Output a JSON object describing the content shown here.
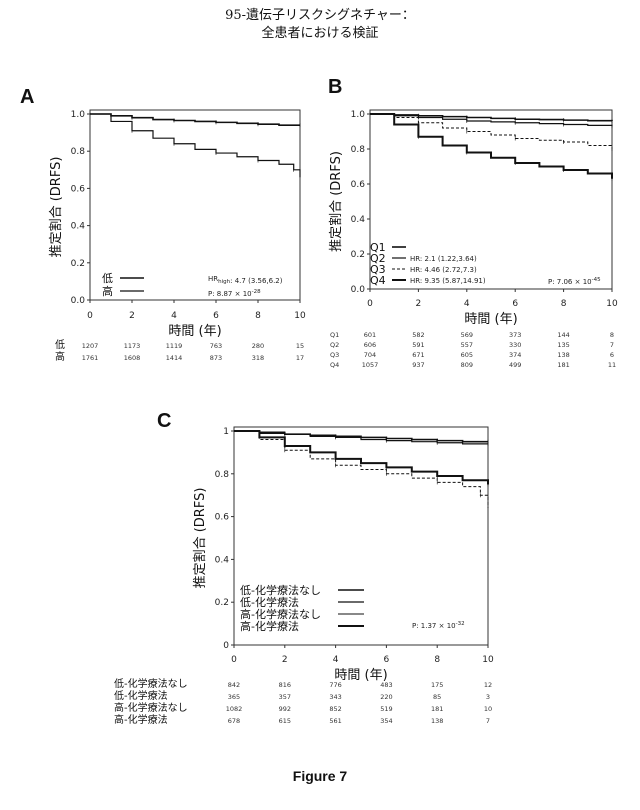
{
  "page": {
    "title_line1": "95-遺伝子リスクシグネチャー：",
    "title_line2": "全患者における検証",
    "figure_label": "Figure 7"
  },
  "chart_data": [
    {
      "id": "A",
      "type": "line",
      "panel_label": "A",
      "xlabel": "時間 (年)",
      "ylabel": "推定割合 (DRFS)",
      "xlim": [
        0,
        10
      ],
      "ylim": [
        0,
        1
      ],
      "x_ticks": [
        "0",
        "2",
        "4",
        "6",
        "8",
        "10"
      ],
      "y_ticks": [
        "0.0",
        "0.2",
        "0.4",
        "0.6",
        "0.8",
        "1.0"
      ],
      "series": [
        {
          "name": "低",
          "x": [
            0,
            1,
            2,
            3,
            4,
            5,
            6,
            7,
            8,
            9,
            10
          ],
          "y": [
            1.0,
            0.99,
            0.98,
            0.97,
            0.965,
            0.96,
            0.955,
            0.95,
            0.945,
            0.94,
            0.94
          ]
        },
        {
          "name": "高",
          "x": [
            0,
            1,
            2,
            3,
            4,
            5,
            6,
            7,
            8,
            9,
            9.7,
            10
          ],
          "y": [
            1.0,
            0.96,
            0.91,
            0.87,
            0.84,
            0.81,
            0.79,
            0.77,
            0.75,
            0.73,
            0.7,
            0.66
          ]
        }
      ],
      "annotations": {
        "hr": "HR_{high}: 4.7 (3.56,6.2)",
        "p": "P: 8.87 × 10^{-28}"
      },
      "risk_table": {
        "rows": [
          {
            "label": "低",
            "values": [
              "1207",
              "1173",
              "1119",
              "763",
              "280",
              "15"
            ]
          },
          {
            "label": "高",
            "values": [
              "1761",
              "1608",
              "1414",
              "873",
              "318",
              "17"
            ]
          }
        ]
      }
    },
    {
      "id": "B",
      "type": "line",
      "panel_label": "B",
      "xlabel": "時間 (年)",
      "ylabel": "推定割合 (DRFS)",
      "xlim": [
        0,
        10
      ],
      "ylim": [
        0,
        1
      ],
      "x_ticks": [
        "0",
        "2",
        "4",
        "6",
        "8",
        "10"
      ],
      "y_ticks": [
        "0.0",
        "0.2",
        "0.4",
        "0.6",
        "0.8",
        "1.0"
      ],
      "series": [
        {
          "name": "Q1",
          "x": [
            0,
            1,
            2,
            3,
            4,
            5,
            6,
            7,
            8,
            9,
            10
          ],
          "y": [
            1.0,
            0.995,
            0.99,
            0.985,
            0.98,
            0.975,
            0.97,
            0.968,
            0.965,
            0.962,
            0.96
          ]
        },
        {
          "name": "Q2",
          "x": [
            0,
            1,
            2,
            3,
            4,
            5,
            6,
            7,
            8,
            9,
            10
          ],
          "y": [
            1.0,
            0.99,
            0.98,
            0.97,
            0.96,
            0.955,
            0.95,
            0.945,
            0.94,
            0.935,
            0.93
          ]
        },
        {
          "name": "Q3",
          "x": [
            0,
            1,
            2,
            3,
            4,
            5,
            6,
            7,
            8,
            9,
            10
          ],
          "y": [
            1.0,
            0.98,
            0.95,
            0.92,
            0.9,
            0.88,
            0.86,
            0.85,
            0.84,
            0.82,
            0.8
          ]
        },
        {
          "name": "Q4",
          "x": [
            0,
            1,
            2,
            3,
            4,
            5,
            6,
            7,
            8,
            9,
            10
          ],
          "y": [
            1.0,
            0.94,
            0.87,
            0.82,
            0.78,
            0.75,
            0.72,
            0.7,
            0.68,
            0.66,
            0.63
          ]
        }
      ],
      "legend": [
        {
          "name": "Q1",
          "hr": ""
        },
        {
          "name": "Q2",
          "hr": "HR: 2.1 (1.22,3.64)"
        },
        {
          "name": "Q3",
          "hr": "HR: 4.46 (2.72,7.3)"
        },
        {
          "name": "Q4",
          "hr": "HR: 9.35 (5.87,14.91)"
        }
      ],
      "annotations": {
        "p": "P: 7.06 × 10^{-45}"
      },
      "risk_table": {
        "rows": [
          {
            "label": "Q1",
            "values": [
              "601",
              "582",
              "569",
              "373",
              "144",
              "8"
            ]
          },
          {
            "label": "Q2",
            "values": [
              "606",
              "591",
              "557",
              "330",
              "135",
              "7"
            ]
          },
          {
            "label": "Q3",
            "values": [
              "704",
              "671",
              "605",
              "374",
              "138",
              "6"
            ]
          },
          {
            "label": "Q4",
            "values": [
              "1057",
              "937",
              "809",
              "499",
              "181",
              "11"
            ]
          }
        ]
      }
    },
    {
      "id": "C",
      "type": "line",
      "panel_label": "C",
      "xlabel": "時間 (年)",
      "ylabel": "推定割合 (DRFS)",
      "xlim": [
        0,
        10
      ],
      "ylim": [
        0,
        1
      ],
      "x_ticks": [
        "0",
        "2",
        "4",
        "6",
        "8",
        "10"
      ],
      "y_ticks": [
        "0",
        "0.2",
        "0.4",
        "0.6",
        "0.8",
        "1"
      ],
      "series": [
        {
          "name": "低-化学療法なし",
          "x": [
            0,
            1,
            2,
            3,
            4,
            5,
            6,
            7,
            8,
            9,
            10
          ],
          "y": [
            1.0,
            0.99,
            0.985,
            0.98,
            0.975,
            0.97,
            0.965,
            0.96,
            0.955,
            0.95,
            0.95
          ]
        },
        {
          "name": "低-化学療法",
          "x": [
            0,
            1,
            2,
            3,
            4,
            5,
            6,
            7,
            8,
            9,
            10
          ],
          "y": [
            1.0,
            0.995,
            0.985,
            0.975,
            0.97,
            0.96,
            0.955,
            0.95,
            0.945,
            0.94,
            0.94
          ]
        },
        {
          "name": "高-化学療法なし",
          "x": [
            0,
            1,
            2,
            3,
            4,
            5,
            6,
            7,
            8,
            9,
            9.7,
            10
          ],
          "y": [
            1.0,
            0.96,
            0.91,
            0.87,
            0.84,
            0.82,
            0.8,
            0.78,
            0.76,
            0.74,
            0.7,
            0.64
          ]
        },
        {
          "name": "高-化学療法",
          "x": [
            0,
            1,
            2,
            3,
            4,
            5,
            6,
            7,
            8,
            9,
            10
          ],
          "y": [
            1.0,
            0.97,
            0.93,
            0.9,
            0.87,
            0.85,
            0.83,
            0.81,
            0.79,
            0.77,
            0.75
          ]
        }
      ],
      "annotations": {
        "p": "P: 1.37 × 10^{-32}"
      },
      "risk_table": {
        "rows": [
          {
            "label": "低-化学療法なし",
            "values": [
              "842",
              "816",
              "776",
              "483",
              "175",
              "12"
            ]
          },
          {
            "label": "低-化学療法",
            "values": [
              "365",
              "357",
              "343",
              "220",
              "85",
              "3"
            ]
          },
          {
            "label": "高-化学療法なし",
            "values": [
              "1082",
              "992",
              "852",
              "519",
              "181",
              "10"
            ]
          },
          {
            "label": "高-化学療法",
            "values": [
              "678",
              "615",
              "561",
              "354",
              "138",
              "7"
            ]
          }
        ]
      }
    }
  ]
}
